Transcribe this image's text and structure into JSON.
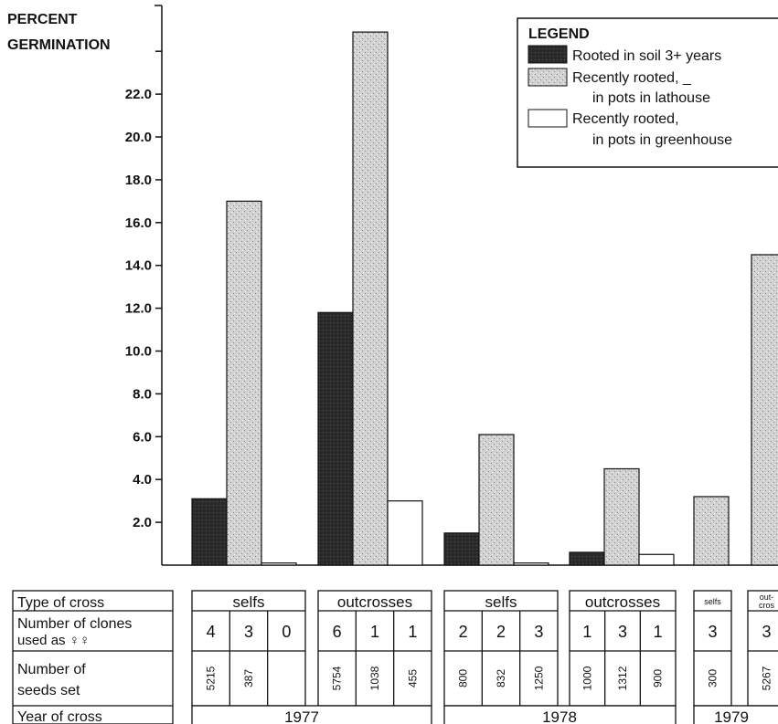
{
  "chart_data": {
    "type": "bar",
    "ylabel_line1": "PERCENT",
    "ylabel_line2": "GERMINATION",
    "ylim": [
      0,
      25
    ],
    "yticks": [
      "2.0",
      "4.0",
      "6.0",
      "8.0",
      "10.0",
      "12.0",
      "14.0",
      "16.0",
      "18.0",
      "20.0",
      "22.0"
    ],
    "legend": {
      "title": "LEGEND",
      "entries": [
        {
          "lines": [
            "Rooted in soil 3+ years"
          ]
        },
        {
          "lines": [
            "Recently rooted, _",
            "in pots in lathouse"
          ]
        },
        {
          "lines": [
            "Recently rooted,",
            "in pots in greenhouse"
          ]
        }
      ]
    },
    "groups": [
      {
        "values": [
          3.1,
          17.0,
          0.1
        ]
      },
      {
        "values": [
          11.8,
          24.9,
          3.0
        ]
      },
      {
        "values": [
          1.5,
          6.1,
          0.1
        ]
      },
      {
        "values": [
          0.6,
          4.5,
          0.5
        ]
      },
      {
        "values": [
          null,
          3.2,
          null
        ]
      },
      {
        "values": [
          null,
          14.5,
          null
        ]
      }
    ]
  },
  "table": {
    "row_labels": {
      "type_of_cross": "Type of cross",
      "clones_line1": "Number of clones",
      "clones_line2": "used as ♀♀",
      "seeds_line1": "Number of",
      "seeds_line2": "seeds set",
      "year": "Year of cross"
    },
    "groups": [
      {
        "type": "selfs",
        "clones": [
          "4",
          "3",
          "0"
        ],
        "seeds": [
          "5215",
          "387",
          ""
        ]
      },
      {
        "type": "outcrosses",
        "clones": [
          "6",
          "1",
          "1"
        ],
        "seeds": [
          "5754",
          "1038",
          "455"
        ]
      },
      {
        "type": "selfs",
        "clones": [
          "2",
          "2",
          "3"
        ],
        "seeds": [
          "800",
          "832",
          "1250"
        ]
      },
      {
        "type": "outcrosses",
        "clones": [
          "1",
          "3",
          "1"
        ],
        "seeds": [
          "1000",
          "1312",
          "900"
        ]
      },
      {
        "type": "selfs",
        "clones": [
          "3"
        ],
        "seeds": [
          "300"
        ]
      },
      {
        "type_line1": "out-",
        "type_line2": "cros",
        "clones": [
          "3"
        ],
        "seeds": [
          "5267"
        ]
      }
    ],
    "years": [
      "1977",
      "1978",
      "1979"
    ]
  }
}
